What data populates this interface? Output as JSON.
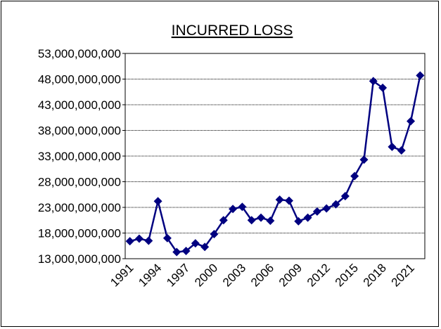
{
  "chart_data": {
    "type": "line",
    "title": "INCURRED LOSS",
    "categories": [
      "1991",
      null,
      null,
      "1994",
      null,
      null,
      "1997",
      null,
      null,
      "2000",
      null,
      null,
      "2003",
      null,
      null,
      "2006",
      null,
      null,
      "2009",
      null,
      null,
      "2012",
      null,
      null,
      "2015",
      null,
      null,
      "2018",
      null,
      null,
      "2021",
      null
    ],
    "series": [
      {
        "name": "Incurred loss",
        "color": "#000080",
        "values": [
          16400000000,
          16900000000,
          16500000000,
          24200000000,
          17000000000,
          14300000000,
          14500000000,
          16000000000,
          15300000000,
          17800000000,
          20500000000,
          22700000000,
          23100000000,
          20500000000,
          21000000000,
          20400000000,
          24500000000,
          24300000000,
          20300000000,
          21000000000,
          22200000000,
          22800000000,
          23600000000,
          25200000000,
          29100000000,
          32300000000,
          47600000000,
          46300000000,
          34800000000,
          34100000000,
          39800000000,
          48700000000
        ]
      }
    ],
    "ylim": [
      13000000000,
      53000000000
    ],
    "yticks": [
      {
        "value": 13000000000,
        "label": "13,000,000,000"
      },
      {
        "value": 18000000000,
        "label": "18,000,000,000"
      },
      {
        "value": 23000000000,
        "label": "23,000,000,000"
      },
      {
        "value": 28000000000,
        "label": "28,000,000,000"
      },
      {
        "value": 33000000000,
        "label": "33,000,000,000"
      },
      {
        "value": 38000000000,
        "label": "38,000,000,000"
      },
      {
        "value": 43000000000,
        "label": "43,000,000,000"
      },
      {
        "value": 48000000000,
        "label": "48,000,000,000"
      },
      {
        "value": 53000000000,
        "label": "53,000,000,000"
      }
    ],
    "grid": true
  }
}
